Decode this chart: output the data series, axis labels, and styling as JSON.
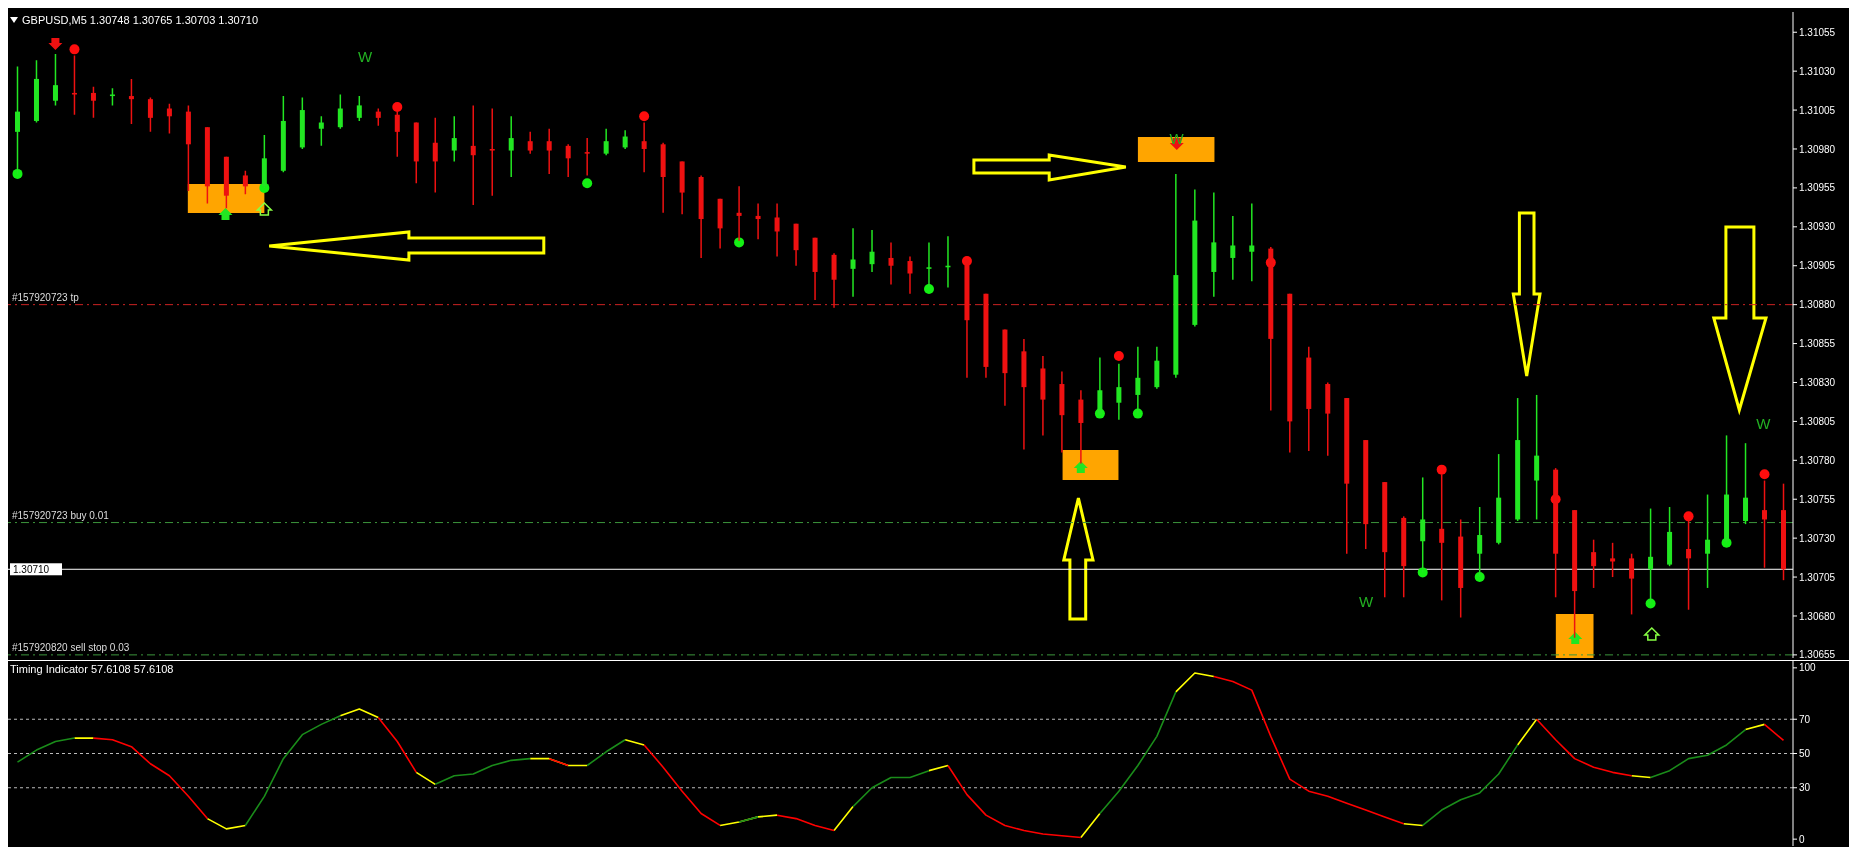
{
  "chart_data": [
    {
      "type": "candlestick",
      "title": "GBPUSD,M5 1.30748 1.30765 1.30703 1.30710",
      "categories": [
        null,
        null,
        null,
        null,
        null,
        null,
        null,
        null,
        null,
        null,
        null,
        null,
        null,
        null,
        null,
        null,
        null,
        null,
        null,
        null,
        null,
        null,
        null,
        null,
        null,
        null,
        null,
        null,
        null,
        null,
        null,
        null,
        null,
        null,
        null,
        null,
        null,
        null,
        null,
        null,
        null,
        null,
        null,
        null,
        null,
        null,
        null,
        null,
        null,
        null,
        null,
        null,
        null,
        null,
        null,
        null,
        null,
        null,
        null,
        null,
        null,
        null,
        null,
        null,
        null,
        null,
        null,
        null,
        null,
        null,
        null,
        null,
        null,
        null,
        null,
        null,
        null,
        null,
        null,
        null,
        null,
        null,
        null,
        null,
        null,
        null,
        null,
        null,
        null,
        null,
        null,
        null,
        null,
        null
      ],
      "ohlc": [
        [
          1.30991,
          1.31033,
          1.30964,
          1.31004
        ],
        [
          1.30998,
          1.31037,
          1.30997,
          1.31025
        ],
        [
          1.31011,
          1.31041,
          1.31008,
          1.31021
        ],
        [
          1.31016,
          1.3104,
          1.31002,
          1.31015
        ],
        [
          1.31016,
          1.3102,
          1.31,
          1.31011
        ],
        [
          1.31014,
          1.31019,
          1.31008,
          1.31015
        ],
        [
          1.31014,
          1.31025,
          1.30996,
          1.31012
        ],
        [
          1.31012,
          1.31013,
          1.30991,
          1.31
        ],
        [
          1.31006,
          1.31009,
          1.3099,
          1.31001
        ],
        [
          1.31004,
          1.31008,
          1.30953,
          1.30983
        ],
        [
          1.30994,
          1.30994,
          1.30945,
          1.30956
        ],
        [
          1.30975,
          1.30975,
          1.30942,
          1.3095
        ],
        [
          1.30963,
          1.30966,
          1.30951,
          1.30956
        ],
        [
          1.30956,
          1.30989,
          1.30955,
          1.30974
        ],
        [
          1.30966,
          1.31014,
          1.30965,
          1.30998
        ],
        [
          1.30981,
          1.31013,
          1.3098,
          1.31005
        ],
        [
          1.30993,
          1.31001,
          1.30982,
          1.30997
        ],
        [
          1.30994,
          1.31015,
          1.30993,
          1.31006
        ],
        [
          1.31,
          1.31014,
          1.30998,
          1.31008
        ],
        [
          1.31004,
          1.31006,
          1.30995,
          1.31
        ],
        [
          1.31002,
          1.31004,
          1.30975,
          1.30991
        ],
        [
          1.30997,
          1.30997,
          1.30958,
          1.30972
        ],
        [
          1.30984,
          1.31,
          1.30952,
          1.30972
        ],
        [
          1.30979,
          1.31001,
          1.30972,
          1.30987
        ],
        [
          1.30982,
          1.31008,
          1.30944,
          1.30976
        ],
        [
          1.3098,
          1.31006,
          1.3095,
          1.30979
        ],
        [
          1.30979,
          1.31001,
          1.30962,
          1.30987
        ],
        [
          1.30985,
          1.30991,
          1.30977,
          1.30979
        ],
        [
          1.30985,
          1.30993,
          1.30964,
          1.30979
        ],
        [
          1.30982,
          1.30983,
          1.30962,
          1.30974
        ],
        [
          1.30978,
          1.30987,
          1.30963,
          1.30977
        ],
        [
          1.30977,
          1.30993,
          1.30976,
          1.30985
        ],
        [
          1.30981,
          1.30992,
          1.3098,
          1.30988
        ],
        [
          1.30985,
          1.30997,
          1.30965,
          1.3098
        ],
        [
          1.30983,
          1.30984,
          1.30939,
          1.30962
        ],
        [
          1.30972,
          1.30972,
          1.30938,
          1.30952
        ],
        [
          1.30962,
          1.30963,
          1.3091,
          1.30935
        ],
        [
          1.30948,
          1.30948,
          1.30916,
          1.30929
        ],
        [
          1.30939,
          1.30956,
          1.30921,
          1.30937
        ],
        [
          1.30937,
          1.30945,
          1.30922,
          1.30935
        ],
        [
          1.30936,
          1.30945,
          1.30911,
          1.30927
        ],
        [
          1.30932,
          1.30932,
          1.30905,
          1.30915
        ],
        [
          1.30923,
          1.30923,
          1.30883,
          1.30901
        ],
        [
          1.30912,
          1.30913,
          1.30878,
          1.30896
        ],
        [
          1.30903,
          1.30929,
          1.30885,
          1.30909
        ],
        [
          1.30906,
          1.30928,
          1.30901,
          1.30914
        ],
        [
          1.3091,
          1.3092,
          1.30893,
          1.30905
        ],
        [
          1.30908,
          1.30911,
          1.30887,
          1.309
        ],
        [
          1.30903,
          1.3092,
          1.30891,
          1.30904
        ],
        [
          1.30904,
          1.30924,
          1.30891,
          1.30905
        ],
        [
          1.30909,
          1.30909,
          1.30833,
          1.3087
        ],
        [
          1.30887,
          1.30887,
          1.30833,
          1.3084
        ],
        [
          1.30864,
          1.30864,
          1.30815,
          1.30836
        ],
        [
          1.3085,
          1.30858,
          1.30787,
          1.30827
        ],
        [
          1.30839,
          1.30847,
          1.30796,
          1.30819
        ],
        [
          1.30829,
          1.30837,
          1.30785,
          1.30809
        ],
        [
          1.30819,
          1.30825,
          1.30778,
          1.30804
        ],
        [
          1.3081,
          1.30846,
          1.30809,
          1.30825
        ],
        [
          1.30817,
          1.30842,
          1.30806,
          1.30827
        ],
        [
          1.30822,
          1.30853,
          1.3081,
          1.30833
        ],
        [
          1.30827,
          1.30853,
          1.30826,
          1.30844
        ],
        [
          1.30835,
          1.30964,
          1.30833,
          1.30899
        ],
        [
          1.30867,
          1.30954,
          1.30866,
          1.30934
        ],
        [
          1.30901,
          1.30952,
          1.30885,
          1.3092
        ],
        [
          1.3091,
          1.30937,
          1.30896,
          1.30918
        ],
        [
          1.30914,
          1.30945,
          1.30895,
          1.30918
        ],
        [
          1.30916,
          1.30917,
          1.30812,
          1.30858
        ],
        [
          1.30887,
          1.30887,
          1.30785,
          1.30805
        ],
        [
          1.30846,
          1.30853,
          1.30786,
          1.30813
        ],
        [
          1.30829,
          1.3083,
          1.30783,
          1.3081
        ],
        [
          1.3082,
          1.3082,
          1.3072,
          1.30765
        ],
        [
          1.30793,
          1.30793,
          1.30723,
          1.30739
        ],
        [
          1.30766,
          1.30766,
          1.30692,
          1.30721
        ],
        [
          1.30743,
          1.30744,
          1.30692,
          1.30712
        ],
        [
          1.30728,
          1.30769,
          1.30708,
          1.30742
        ],
        [
          1.30736,
          1.30771,
          1.3069,
          1.30727
        ],
        [
          1.30731,
          1.30742,
          1.30679,
          1.30698
        ],
        [
          1.3072,
          1.3075,
          1.30705,
          1.30732
        ],
        [
          1.30727,
          1.30784,
          1.30726,
          1.30756
        ],
        [
          1.30742,
          1.3082,
          1.30741,
          1.30793
        ],
        [
          1.30767,
          1.30822,
          1.30742,
          1.30783
        ],
        [
          1.30774,
          1.30775,
          1.30692,
          1.3072
        ],
        [
          1.30748,
          1.30748,
          1.30666,
          1.30696
        ],
        [
          1.30721,
          1.30729,
          1.30698,
          1.30712
        ],
        [
          1.30717,
          1.30727,
          1.30705,
          1.30715
        ],
        [
          1.30717,
          1.3072,
          1.30681,
          1.30704
        ],
        [
          1.3071,
          1.30749,
          1.30688,
          1.30718
        ],
        [
          1.30713,
          1.3075,
          1.30712,
          1.30734
        ],
        [
          1.30723,
          1.30742,
          1.30684,
          1.30717
        ],
        [
          1.3072,
          1.30758,
          1.30698,
          1.30729
        ],
        [
          1.30728,
          1.30796,
          1.30727,
          1.30758
        ],
        [
          1.30741,
          1.30791,
          1.30739,
          1.30756
        ],
        [
          1.30748,
          1.30767,
          1.30711,
          1.30742
        ],
        [
          1.30748,
          1.30765,
          1.30703,
          1.3071
        ]
      ],
      "colors": [
        "#22e622",
        "#22e622",
        "#22e622",
        "#ee1111",
        "#ee1111",
        "#22e622",
        "#ee1111",
        "#ee1111",
        "#ee1111",
        "#ee1111",
        "#ee1111",
        "#ee1111",
        "#ee1111",
        "#22e622",
        "#22e622",
        "#22e622",
        "#22e622",
        "#22e622",
        "#22e622",
        "#ee1111",
        "#ee1111",
        "#ee1111",
        "#ee1111",
        "#22e622",
        "#ee1111",
        "#ee1111",
        "#22e622",
        "#ee1111",
        "#ee1111",
        "#ee1111",
        "#ee1111",
        "#22e622",
        "#22e622",
        "#ee1111",
        "#ee1111",
        "#ee1111",
        "#ee1111",
        "#ee1111",
        "#ee1111",
        "#ee1111",
        "#ee1111",
        "#ee1111",
        "#ee1111",
        "#ee1111",
        "#22e622",
        "#22e622",
        "#ee1111",
        "#ee1111",
        "#22e622",
        "#22e622",
        "#ee1111",
        "#ee1111",
        "#ee1111",
        "#ee1111",
        "#ee1111",
        "#ee1111",
        "#ee1111",
        "#22e622",
        "#22e622",
        "#22e622",
        "#22e622",
        "#22e622",
        "#22e622",
        "#22e622",
        "#22e622",
        "#22e622",
        "#ee1111",
        "#ee1111",
        "#ee1111",
        "#ee1111",
        "#ee1111",
        "#ee1111",
        "#ee1111",
        "#ee1111",
        "#22e622",
        "#ee1111",
        "#ee1111",
        "#22e622",
        "#22e622",
        "#22e622",
        "#22e622",
        "#ee1111",
        "#ee1111",
        "#ee1111",
        "#ee1111",
        "#ee1111",
        "#22e622",
        "#22e622",
        "#ee1111",
        "#22e622",
        "#22e622",
        "#22e622",
        "#ee1111",
        "#ee1111"
      ],
      "series": [
        {
          "type": "scatter",
          "color": "#ff0d0d",
          "values": [
            null,
            null,
            null,
            1.31044,
            null,
            null,
            null,
            null,
            null,
            null,
            null,
            null,
            null,
            null,
            null,
            null,
            null,
            null,
            null,
            null,
            1.31007,
            null,
            null,
            null,
            null,
            null,
            null,
            null,
            null,
            null,
            null,
            null,
            null,
            1.31001,
            null,
            null,
            null,
            null,
            null,
            null,
            null,
            null,
            null,
            null,
            null,
            null,
            null,
            null,
            null,
            null,
            1.30908,
            null,
            null,
            null,
            null,
            null,
            null,
            null,
            1.30847,
            null,
            null,
            null,
            null,
            null,
            null,
            null,
            1.30907,
            null,
            null,
            null,
            null,
            null,
            null,
            null,
            null,
            1.30774,
            null,
            null,
            null,
            null,
            null,
            1.30755,
            null,
            null,
            null,
            null,
            null,
            null,
            1.30744,
            null,
            null,
            null,
            1.30771,
            null
          ]
        },
        {
          "type": "scatter",
          "color": "#14f014",
          "values": [
            1.30964,
            null,
            null,
            null,
            null,
            null,
            null,
            null,
            null,
            null,
            null,
            null,
            null,
            1.30955,
            null,
            null,
            null,
            null,
            null,
            null,
            null,
            null,
            null,
            null,
            null,
            null,
            null,
            null,
            null,
            null,
            1.30958,
            null,
            null,
            null,
            null,
            null,
            null,
            null,
            1.3092,
            null,
            null,
            null,
            null,
            null,
            null,
            null,
            null,
            null,
            1.3089,
            null,
            null,
            null,
            null,
            null,
            null,
            null,
            null,
            1.3081,
            null,
            1.3081,
            null,
            null,
            null,
            null,
            null,
            null,
            null,
            null,
            null,
            null,
            null,
            null,
            null,
            null,
            1.30708,
            null,
            null,
            1.30705,
            null,
            null,
            null,
            null,
            null,
            null,
            null,
            null,
            1.30688,
            null,
            null,
            null,
            1.30727,
            null,
            null,
            null
          ]
        }
      ],
      "marker": "circle",
      "ylim": [
        1.30653,
        1.31068
      ],
      "yticks": [
        {
          "value": 1.31055,
          "label": "1.31055"
        },
        {
          "value": 1.3103,
          "label": "1.31030"
        },
        {
          "value": 1.31005,
          "label": "1.31005"
        },
        {
          "value": 1.3098,
          "label": "1.30980"
        },
        {
          "value": 1.30955,
          "label": "1.30955"
        },
        {
          "value": 1.3093,
          "label": "1.30930"
        },
        {
          "value": 1.30905,
          "label": "1.30905"
        },
        {
          "value": 1.3088,
          "label": "1.30880"
        },
        {
          "value": 1.30855,
          "label": "1.30855"
        },
        {
          "value": 1.3083,
          "label": "1.30830"
        },
        {
          "value": 1.30805,
          "label": "1.30805"
        },
        {
          "value": 1.3078,
          "label": "1.30780"
        },
        {
          "value": 1.30755,
          "label": "1.30755"
        },
        {
          "value": 1.3073,
          "label": "1.30730"
        },
        {
          "value": 1.30705,
          "label": "1.30705"
        },
        {
          "value": 1.3068,
          "label": "1.30680"
        },
        {
          "value": 1.30655,
          "label": "1.30655"
        }
      ],
      "ref_lines": [
        {
          "axis": "y",
          "value": 1.3088,
          "label": "#157920723 tp",
          "color": "#cc2222",
          "line_style": "dashed"
        },
        {
          "axis": "y",
          "value": 1.3074,
          "label": "#157920723 buy 0.01",
          "color": "#3c963c",
          "line_style": "dashed"
        },
        {
          "axis": "y",
          "value": 1.30655,
          "label": "#157920820 sell stop 0.03",
          "color": "#3c963c",
          "line_style": "dashed"
        },
        {
          "axis": "y",
          "value": 1.3071,
          "label": "1.30710",
          "color": "#ffffff",
          "line_style": "solid"
        }
      ],
      "annotations": [
        "W",
        "W",
        "W",
        "W"
      ],
      "tick_labels": "y"
    },
    {
      "type": "line",
      "title": "Timing Indicator 57.6108 57.6108",
      "categories": [
        null,
        null,
        null,
        null,
        null,
        null,
        null,
        null,
        null,
        null,
        null,
        null,
        null,
        null,
        null,
        null,
        null,
        null,
        null,
        null,
        null,
        null,
        null,
        null,
        null,
        null,
        null,
        null,
        null,
        null,
        null,
        null,
        null,
        null,
        null,
        null,
        null,
        null,
        null,
        null,
        null,
        null,
        null,
        null,
        null,
        null,
        null,
        null,
        null,
        null,
        null,
        null,
        null,
        null,
        null,
        null,
        null,
        null,
        null,
        null,
        null,
        null,
        null,
        null,
        null,
        null,
        null,
        null,
        null,
        null,
        null,
        null,
        null,
        null,
        null,
        null,
        null,
        null,
        null,
        null,
        null,
        null,
        null,
        null,
        null,
        null,
        null,
        null,
        null,
        null,
        null,
        null,
        null,
        null
      ],
      "series": [
        {
          "color": "#ffff00",
          "values": [
            null,
            null,
            null,
            59,
            59,
            null,
            null,
            null,
            null,
            null,
            12,
            6,
            8,
            null,
            null,
            null,
            null,
            72,
            76,
            71,
            null,
            39,
            32,
            null,
            null,
            null,
            null,
            47,
            47,
            43,
            43,
            null,
            58,
            55,
            null,
            null,
            null,
            8,
            10,
            13,
            14,
            null,
            null,
            5,
            19,
            null,
            null,
            null,
            40,
            43,
            null,
            null,
            null,
            null,
            null,
            null,
            1,
            15,
            null,
            null,
            null,
            86,
            97,
            95,
            null,
            null,
            null,
            null,
            null,
            null,
            null,
            null,
            null,
            9,
            8,
            null,
            null,
            null,
            null,
            55,
            70,
            null,
            null,
            null,
            null,
            37,
            36,
            null,
            null,
            null,
            null,
            64,
            67,
            null
          ]
        },
        {
          "color": "#1a8c1a",
          "values": [
            45,
            52,
            57,
            59,
            null,
            null,
            null,
            null,
            null,
            null,
            null,
            null,
            8,
            25,
            47,
            61,
            67,
            72,
            null,
            null,
            null,
            null,
            32,
            37,
            38,
            43,
            46,
            47,
            null,
            null,
            43,
            51,
            58,
            null,
            null,
            null,
            null,
            null,
            10,
            13,
            null,
            null,
            null,
            null,
            19,
            30,
            36,
            36,
            40,
            null,
            null,
            null,
            null,
            null,
            null,
            null,
            null,
            15,
            28,
            43,
            60,
            86,
            null,
            null,
            null,
            null,
            null,
            null,
            null,
            null,
            null,
            null,
            null,
            null,
            8,
            17,
            23,
            27,
            38,
            55,
            null,
            null,
            null,
            null,
            null,
            null,
            36,
            40,
            47,
            49,
            55,
            64,
            null,
            null
          ]
        },
        {
          "color": "#ff0000",
          "values": [
            null,
            null,
            null,
            null,
            59,
            58,
            54,
            44,
            37,
            25,
            12,
            null,
            null,
            null,
            null,
            null,
            null,
            null,
            null,
            71,
            57,
            39,
            null,
            null,
            null,
            null,
            null,
            null,
            47,
            43,
            null,
            null,
            null,
            55,
            42,
            28,
            15,
            8,
            null,
            null,
            14,
            12,
            8,
            5,
            null,
            null,
            null,
            null,
            null,
            43,
            26,
            14,
            8,
            5,
            3,
            2,
            1,
            null,
            null,
            null,
            null,
            null,
            null,
            95,
            92,
            87,
            60,
            35,
            28,
            25,
            21,
            17,
            13,
            9,
            null,
            null,
            null,
            null,
            null,
            null,
            70,
            58,
            47,
            42,
            39,
            37,
            null,
            null,
            null,
            null,
            null,
            null,
            67,
            57.6108
          ]
        }
      ],
      "ylim": [
        -4,
        104
      ],
      "yticks": [
        0,
        30,
        50,
        70,
        100
      ],
      "ref_lines": [
        {
          "axis": "y",
          "value": 30,
          "color": "#bbbbbb",
          "line_style": "dotted"
        },
        {
          "axis": "y",
          "value": 50,
          "color": "#bbbbbb",
          "line_style": "dotted"
        },
        {
          "axis": "y",
          "value": 70,
          "color": "#bbbbbb",
          "line_style": "dotted"
        }
      ],
      "tick_labels": "y"
    }
  ]
}
